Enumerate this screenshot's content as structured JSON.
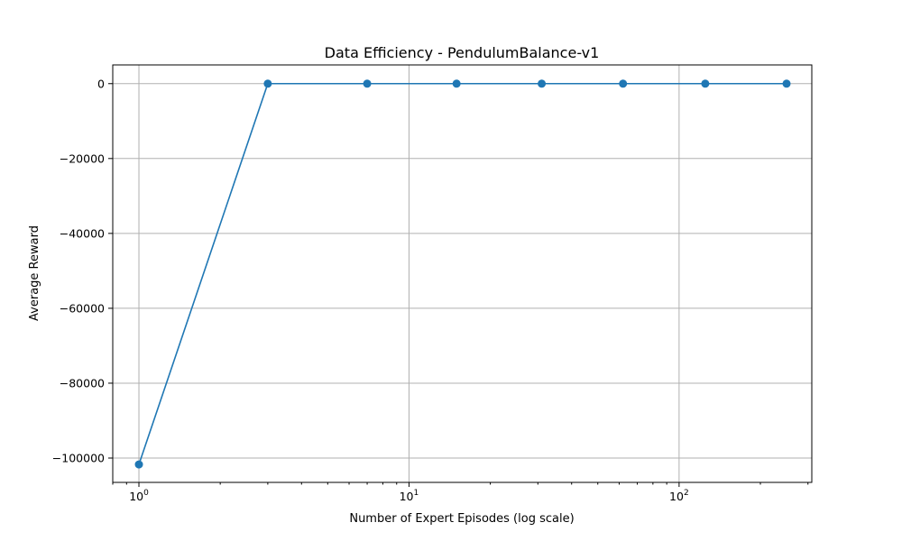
{
  "chart_data": {
    "type": "line",
    "title": "Data Efficiency - PendulumBalance-v1",
    "xlabel": "Number of Expert Episodes (log scale)",
    "ylabel": "Average Reward",
    "xscale": "log",
    "xlim": [
      0.8,
      310
    ],
    "ylim": [
      -106500,
      5000
    ],
    "grid": true,
    "x_ticks": [
      {
        "value": 1,
        "base": "10",
        "exp": "0"
      },
      {
        "value": 10,
        "base": "10",
        "exp": "1"
      },
      {
        "value": 100,
        "base": "10",
        "exp": "2"
      }
    ],
    "y_ticks": [
      {
        "value": 0,
        "label": "0"
      },
      {
        "value": -20000,
        "label": "−20000"
      },
      {
        "value": -40000,
        "label": "−40000"
      },
      {
        "value": -60000,
        "label": "−60000"
      },
      {
        "value": -80000,
        "label": "−80000"
      },
      {
        "value": -100000,
        "label": "−100000"
      }
    ],
    "series": [
      {
        "color": "#1f77b4",
        "x": [
          1,
          3,
          7,
          15,
          31,
          62,
          125,
          250
        ],
        "y": [
          -101700,
          0,
          0,
          0,
          0,
          0,
          0,
          0
        ]
      }
    ]
  }
}
